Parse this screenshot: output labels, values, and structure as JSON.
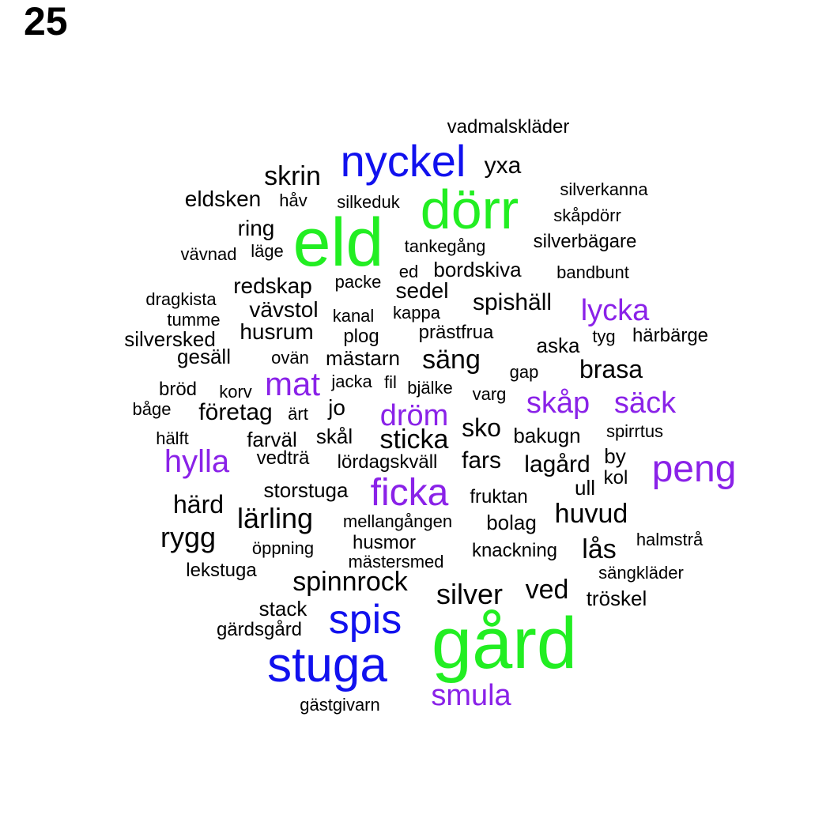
{
  "page_number": "25",
  "colors": {
    "green": "#22ee22",
    "blue": "#1111ee",
    "purple": "#8a22e8",
    "black": "#000000"
  },
  "words": [
    {
      "text": "gård",
      "color": "green"
    },
    {
      "text": "eld",
      "color": "green"
    },
    {
      "text": "dörr",
      "color": "green"
    },
    {
      "text": "stuga",
      "color": "blue"
    },
    {
      "text": "nyckel",
      "color": "blue"
    },
    {
      "text": "spis",
      "color": "blue"
    },
    {
      "text": "peng",
      "color": "purple"
    },
    {
      "text": "ficka",
      "color": "purple"
    },
    {
      "text": "smula",
      "color": "purple"
    },
    {
      "text": "hylla",
      "color": "purple"
    },
    {
      "text": "mat",
      "color": "purple"
    },
    {
      "text": "lycka",
      "color": "purple"
    },
    {
      "text": "dröm",
      "color": "purple"
    },
    {
      "text": "skåp",
      "color": "purple"
    },
    {
      "text": "säck",
      "color": "purple"
    },
    {
      "text": "skrin",
      "color": "black"
    },
    {
      "text": "yxa",
      "color": "black"
    },
    {
      "text": "vadmalskläder",
      "color": "black"
    },
    {
      "text": "silverkanna",
      "color": "black"
    },
    {
      "text": "skåpdörr",
      "color": "black"
    },
    {
      "text": "eldsken",
      "color": "black"
    },
    {
      "text": "håv",
      "color": "black"
    },
    {
      "text": "silkeduk",
      "color": "black"
    },
    {
      "text": "ring",
      "color": "black"
    },
    {
      "text": "vävnad",
      "color": "black"
    },
    {
      "text": "läge",
      "color": "black"
    },
    {
      "text": "tankegång",
      "color": "black"
    },
    {
      "text": "silverbägare",
      "color": "black"
    },
    {
      "text": "ed",
      "color": "black"
    },
    {
      "text": "bordskiva",
      "color": "black"
    },
    {
      "text": "bandbunt",
      "color": "black"
    },
    {
      "text": "redskap",
      "color": "black"
    },
    {
      "text": "packe",
      "color": "black"
    },
    {
      "text": "sedel",
      "color": "black"
    },
    {
      "text": "dragkista",
      "color": "black"
    },
    {
      "text": "spishäll",
      "color": "black"
    },
    {
      "text": "vävstol",
      "color": "black"
    },
    {
      "text": "kanal",
      "color": "black"
    },
    {
      "text": "kappa",
      "color": "black"
    },
    {
      "text": "tumme",
      "color": "black"
    },
    {
      "text": "husrum",
      "color": "black"
    },
    {
      "text": "plog",
      "color": "black"
    },
    {
      "text": "prästfrua",
      "color": "black"
    },
    {
      "text": "tyg",
      "color": "black"
    },
    {
      "text": "härbärge",
      "color": "black"
    },
    {
      "text": "silversked",
      "color": "black"
    },
    {
      "text": "aska",
      "color": "black"
    },
    {
      "text": "gesäll",
      "color": "black"
    },
    {
      "text": "ovän",
      "color": "black"
    },
    {
      "text": "mästarn",
      "color": "black"
    },
    {
      "text": "säng",
      "color": "black"
    },
    {
      "text": "gap",
      "color": "black"
    },
    {
      "text": "brasa",
      "color": "black"
    },
    {
      "text": "jacka",
      "color": "black"
    },
    {
      "text": "fil",
      "color": "black"
    },
    {
      "text": "bröd",
      "color": "black"
    },
    {
      "text": "korv",
      "color": "black"
    },
    {
      "text": "bjälke",
      "color": "black"
    },
    {
      "text": "varg",
      "color": "black"
    },
    {
      "text": "jo",
      "color": "black"
    },
    {
      "text": "båge",
      "color": "black"
    },
    {
      "text": "företag",
      "color": "black"
    },
    {
      "text": "ärt",
      "color": "black"
    },
    {
      "text": "sko",
      "color": "black"
    },
    {
      "text": "hälft",
      "color": "black"
    },
    {
      "text": "farväl",
      "color": "black"
    },
    {
      "text": "skål",
      "color": "black"
    },
    {
      "text": "sticka",
      "color": "black"
    },
    {
      "text": "bakugn",
      "color": "black"
    },
    {
      "text": "spirrtus",
      "color": "black"
    },
    {
      "text": "vedträ",
      "color": "black"
    },
    {
      "text": "lördagskväll",
      "color": "black"
    },
    {
      "text": "fars",
      "color": "black"
    },
    {
      "text": "lagård",
      "color": "black"
    },
    {
      "text": "by",
      "color": "black"
    },
    {
      "text": "kol",
      "color": "black"
    },
    {
      "text": "storstuga",
      "color": "black"
    },
    {
      "text": "ull",
      "color": "black"
    },
    {
      "text": "härd",
      "color": "black"
    },
    {
      "text": "fruktan",
      "color": "black"
    },
    {
      "text": "lärling",
      "color": "black"
    },
    {
      "text": "mellangången",
      "color": "black"
    },
    {
      "text": "bolag",
      "color": "black"
    },
    {
      "text": "huvud",
      "color": "black"
    },
    {
      "text": "rygg",
      "color": "black"
    },
    {
      "text": "husmor",
      "color": "black"
    },
    {
      "text": "halmstrå",
      "color": "black"
    },
    {
      "text": "öppning",
      "color": "black"
    },
    {
      "text": "knackning",
      "color": "black"
    },
    {
      "text": "lås",
      "color": "black"
    },
    {
      "text": "mästersmed",
      "color": "black"
    },
    {
      "text": "lekstuga",
      "color": "black"
    },
    {
      "text": "sängkläder",
      "color": "black"
    },
    {
      "text": "spinnrock",
      "color": "black"
    },
    {
      "text": "silver",
      "color": "black"
    },
    {
      "text": "ved",
      "color": "black"
    },
    {
      "text": "tröskel",
      "color": "black"
    },
    {
      "text": "stack",
      "color": "black"
    },
    {
      "text": "gärdsgård",
      "color": "black"
    },
    {
      "text": "gästgivarn",
      "color": "black"
    }
  ]
}
